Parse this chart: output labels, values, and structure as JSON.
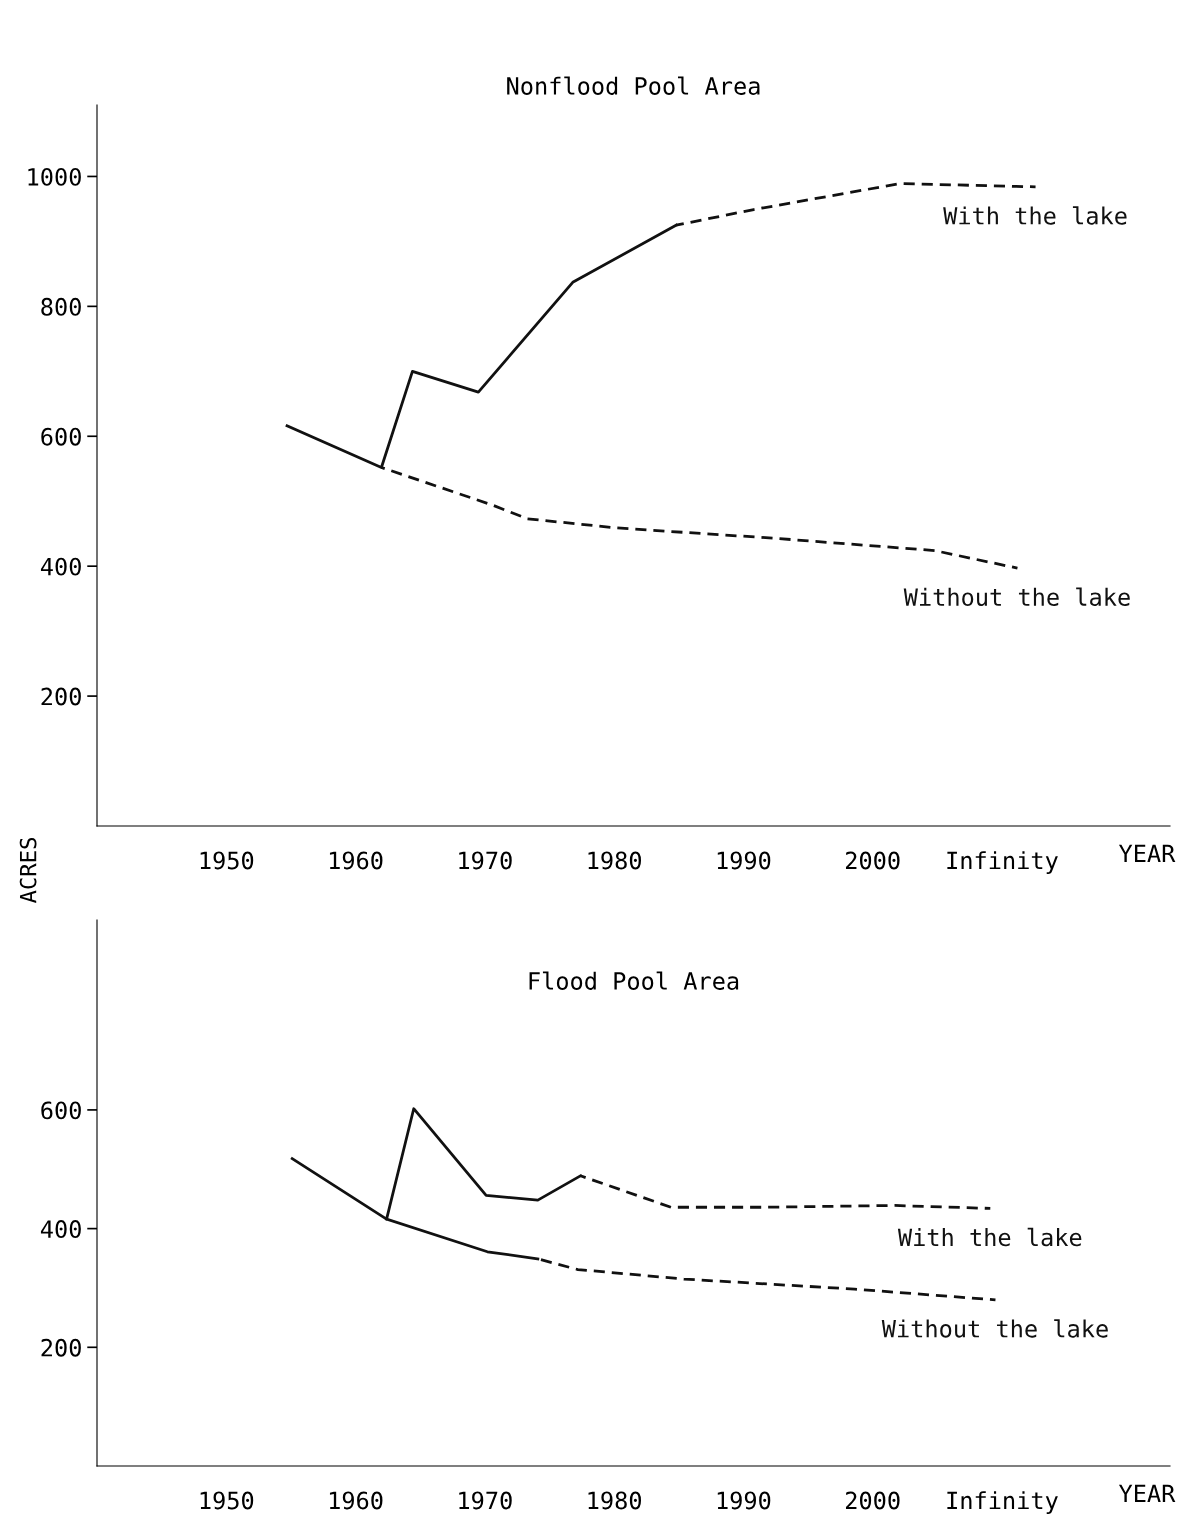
{
  "chart_data": [
    {
      "type": "line",
      "title": "Nonflood Pool Area",
      "ylabel": "ACRES",
      "xlabel": "YEAR",
      "xlim": [
        1940,
        2023
      ],
      "xticks": [
        1950,
        1960,
        1970,
        1980,
        1990,
        2000,
        {
          "value": 2010,
          "label": "Infinity"
        }
      ],
      "ylim": [
        0,
        1110
      ],
      "yticks": [
        200,
        400,
        600,
        800,
        1000
      ],
      "grid": false,
      "legend": false,
      "series": [
        {
          "color": "#111111",
          "line_style": "solid",
          "x": [
            1954.7,
            1962,
            1964.4,
            1969.5,
            1976.8,
            1984.8
          ],
          "values": [
            616,
            552,
            700,
            668,
            837,
            925
          ]
        },
        {
          "name": "With the lake",
          "color": "#111111",
          "line_style": "dashed",
          "x": [
            1984.8,
            1990.8,
            2002.1,
            2012.6
          ],
          "values": [
            925,
            949,
            989,
            984
          ]
        },
        {
          "name": "Without the lake",
          "color": "#111111",
          "line_style": "dashed",
          "x": [
            1962,
            1970.6,
            1973.3,
            1980.1,
            1992.4,
            2004.8,
            2011.2
          ],
          "values": [
            552,
            494,
            473,
            459,
            443,
            424,
            397
          ]
        }
      ]
    },
    {
      "type": "line",
      "title": "Flood Pool Area",
      "xlabel": "YEAR",
      "xlim": [
        1940,
        2023
      ],
      "xticks": [
        1950,
        1960,
        1970,
        1980,
        1990,
        2000,
        {
          "value": 2010,
          "label": "Infinity"
        }
      ],
      "ylim": [
        0,
        920
      ],
      "yticks": [
        200,
        400,
        600
      ],
      "grid": false,
      "legend": false,
      "series": [
        {
          "color": "#111111",
          "line_style": "solid",
          "x": [
            1955.1,
            1962.4,
            1964.5,
            1970.1,
            1974.1,
            1977.4
          ],
          "values": [
            518,
            416,
            602,
            456,
            448,
            489
          ]
        },
        {
          "name": "With the lake",
          "color": "#111111",
          "line_style": "dashed",
          "x": [
            1977.4,
            1984.4,
            1991.6,
            2001.7,
            2009.1
          ],
          "values": [
            489,
            436,
            436,
            439,
            434
          ]
        },
        {
          "color": "#111111",
          "line_style": "solid",
          "x": [
            1962.4,
            1970.2,
            1974.1
          ],
          "values": [
            416,
            361,
            349
          ]
        },
        {
          "name": "Without the lake",
          "color": "#111111",
          "line_style": "dashed",
          "x": [
            1974.1,
            1977.2,
            1985.4,
            1998.6,
            2009.5
          ],
          "values": [
            349,
            331,
            315,
            298,
            280
          ]
        }
      ]
    }
  ]
}
